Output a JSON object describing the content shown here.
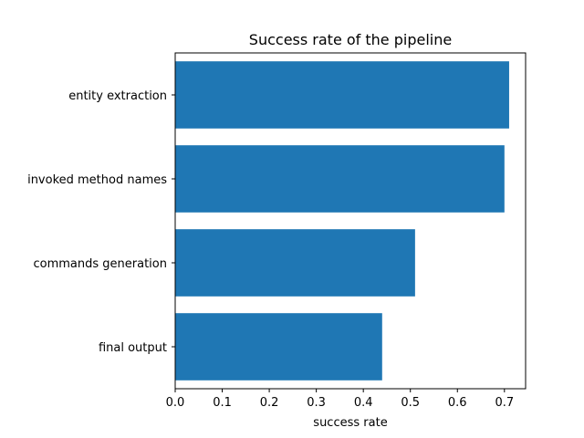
{
  "chart_data": {
    "type": "bar",
    "orientation": "horizontal",
    "title": "Success rate of the pipeline",
    "xlabel": "success rate",
    "ylabel": "",
    "categories": [
      "entity extraction",
      "invoked method names",
      "commands generation",
      "final output"
    ],
    "values": [
      0.71,
      0.7,
      0.51,
      0.44
    ],
    "xlim": [
      0,
      0.745
    ],
    "xticks": [
      0.0,
      0.1,
      0.2,
      0.3,
      0.4,
      0.5,
      0.6,
      0.7
    ],
    "xtick_labels": [
      "0.0",
      "0.1",
      "0.2",
      "0.3",
      "0.4",
      "0.5",
      "0.6",
      "0.7"
    ],
    "bar_color": "#1f77b4",
    "grid": false,
    "legend": "none"
  }
}
